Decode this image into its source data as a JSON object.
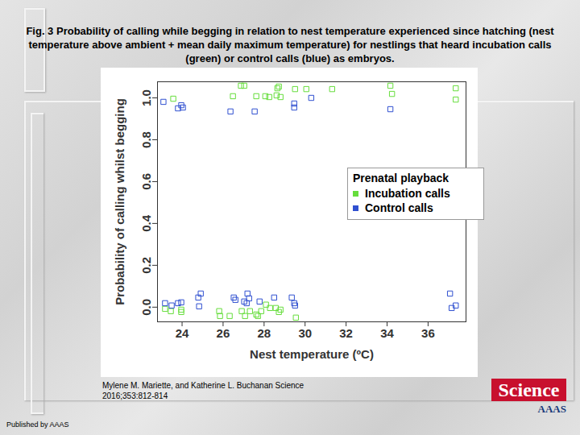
{
  "chart_data": {
    "type": "scatter",
    "title": "Fig. 3 Probability of calling while begging in relation to nest temperature experienced since hatching (nest temperature above ambient + mean daily maximum temperature) for nestlings that heard incubation calls (green) or control calls (blue) as embryos.",
    "x_label": "Nest temperature (ºC)",
    "y_label": "Probability of calling whilst begging",
    "legend_title": "Prenatal playback",
    "legend": "right",
    "xlim": [
      22.8,
      37.85
    ],
    "xticks": [
      24,
      26,
      28,
      30,
      32,
      34,
      36
    ],
    "ylim": [
      -0.07,
      1.077
    ],
    "yticks": [
      {
        "value": 0,
        "label": "0.0"
      },
      {
        "value": 0.2,
        "label": "0.2"
      },
      {
        "value": 0.4,
        "label": "0.4"
      },
      {
        "value": 0.6,
        "label": "0.6"
      },
      {
        "value": 0.8,
        "label": "0.8"
      },
      {
        "value": 1,
        "label": "1.0"
      }
    ],
    "grid": false,
    "series": [
      {
        "name": "Incubation calls",
        "color": "#66dd3c",
        "marker": "square_open",
        "x": [
          23.57,
          26.87,
          27.03,
          26.48,
          27.62,
          28.06,
          28.25,
          28.61,
          28.65,
          28.72,
          28.8,
          29.51,
          30.06,
          31.32,
          34.16,
          34.24,
          37.35,
          37.35,
          23.17,
          23.45,
          23.96,
          23.96,
          25.81,
          25.85,
          26.32,
          26.91,
          27.07,
          27.31,
          27.62,
          27.7,
          27.86,
          28.09,
          28.29,
          28.57,
          28.72,
          28.8,
          29.55
        ],
        "values": [
          0.996,
          1.058,
          1.058,
          1.008,
          1.008,
          1.008,
          1.004,
          1.012,
          1.046,
          1.054,
          1.004,
          1.042,
          1.042,
          1.042,
          1.058,
          1.019,
          1.046,
          0.992,
          -0.008,
          -0.019,
          -0.012,
          -0.023,
          -0.019,
          -0.042,
          -0.042,
          -0.019,
          -0.042,
          -0.019,
          -0.035,
          -0.042,
          -0.019,
          0.012,
          -0.004,
          -0.004,
          -0.023,
          -0.012,
          -0.05
        ]
      },
      {
        "name": "Control calls",
        "color": "#3050d0",
        "marker": "square_open",
        "x": [
          23.09,
          23.8,
          23.96,
          24.04,
          26.36,
          27.54,
          29.47,
          29.47,
          30.3,
          34.16,
          23.17,
          23.49,
          23.8,
          23.96,
          24.79,
          24.91,
          24.83,
          26.52,
          26.6,
          27.03,
          27.19,
          27.27,
          27.15,
          27.78,
          28.49,
          29.35,
          29.47,
          29.51,
          37.07,
          37.15,
          37.35
        ],
        "values": [
          0.981,
          0.95,
          0.965,
          0.954,
          0.935,
          0.935,
          0.973,
          0.954,
          1.0,
          0.946,
          0.019,
          0.008,
          0.019,
          0.023,
          0.046,
          0.065,
          0.004,
          0.046,
          0.035,
          0.027,
          0.065,
          0.042,
          0.019,
          0.027,
          0.046,
          0.046,
          0.019,
          0.008,
          0.065,
          -0.004,
          0.008
        ]
      }
    ]
  },
  "page": {
    "citation": "Mylene M. Mariette, and Katherine L. Buchanan Science 2016;353:812-814",
    "publisher_note": "Published by AAAS",
    "logo": "Science",
    "logo_sub": "AAAS"
  }
}
